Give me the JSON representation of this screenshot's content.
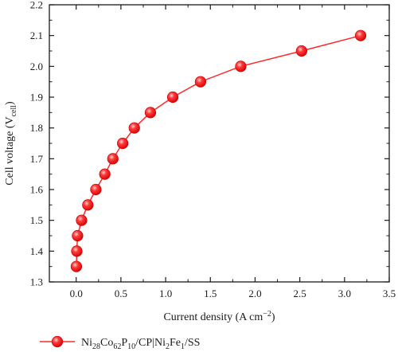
{
  "chart_data": {
    "type": "line",
    "xlabel": {
      "base": "Current density (A cm",
      "sup": "−2",
      "tail": ")"
    },
    "ylabel": {
      "base": "Cell voltage (V",
      "sub": "cell",
      "tail": ")"
    },
    "xlim": [
      -0.3,
      3.5
    ],
    "ylim": [
      1.3,
      2.2
    ],
    "xticks": [
      "0.0",
      "0.5",
      "1.0",
      "1.5",
      "2.0",
      "2.5",
      "3.0",
      "3.5"
    ],
    "yticks": [
      "1.3",
      "1.4",
      "1.5",
      "1.6",
      "1.7",
      "1.8",
      "1.9",
      "2.0",
      "2.1",
      "2.2"
    ],
    "grid": false,
    "legend_position": "bottom",
    "series": [
      {
        "name": "Ni28Co62P10/CP|Ni2Fe1/SS",
        "color": "#ff2a2a",
        "x": [
          0.002,
          0.007,
          0.015,
          0.06,
          0.13,
          0.22,
          0.32,
          0.41,
          0.52,
          0.65,
          0.83,
          1.08,
          1.39,
          1.84,
          2.52,
          3.18
        ],
        "y": [
          1.35,
          1.4,
          1.45,
          1.5,
          1.55,
          1.6,
          1.65,
          1.7,
          1.75,
          1.8,
          1.85,
          1.9,
          1.95,
          2.0,
          2.05,
          2.1
        ]
      }
    ],
    "legend": {
      "parts": [
        {
          "t": "Ni",
          "s": "n"
        },
        {
          "t": "28",
          "s": "sub"
        },
        {
          "t": "Co",
          "s": "n"
        },
        {
          "t": "62",
          "s": "sub"
        },
        {
          "t": "P",
          "s": "n"
        },
        {
          "t": "10",
          "s": "sub"
        },
        {
          "t": "/CP|Ni",
          "s": "n"
        },
        {
          "t": "2",
          "s": "sub"
        },
        {
          "t": "Fe",
          "s": "n"
        },
        {
          "t": "1",
          "s": "sub"
        },
        {
          "t": "/SS",
          "s": "n"
        }
      ]
    }
  }
}
